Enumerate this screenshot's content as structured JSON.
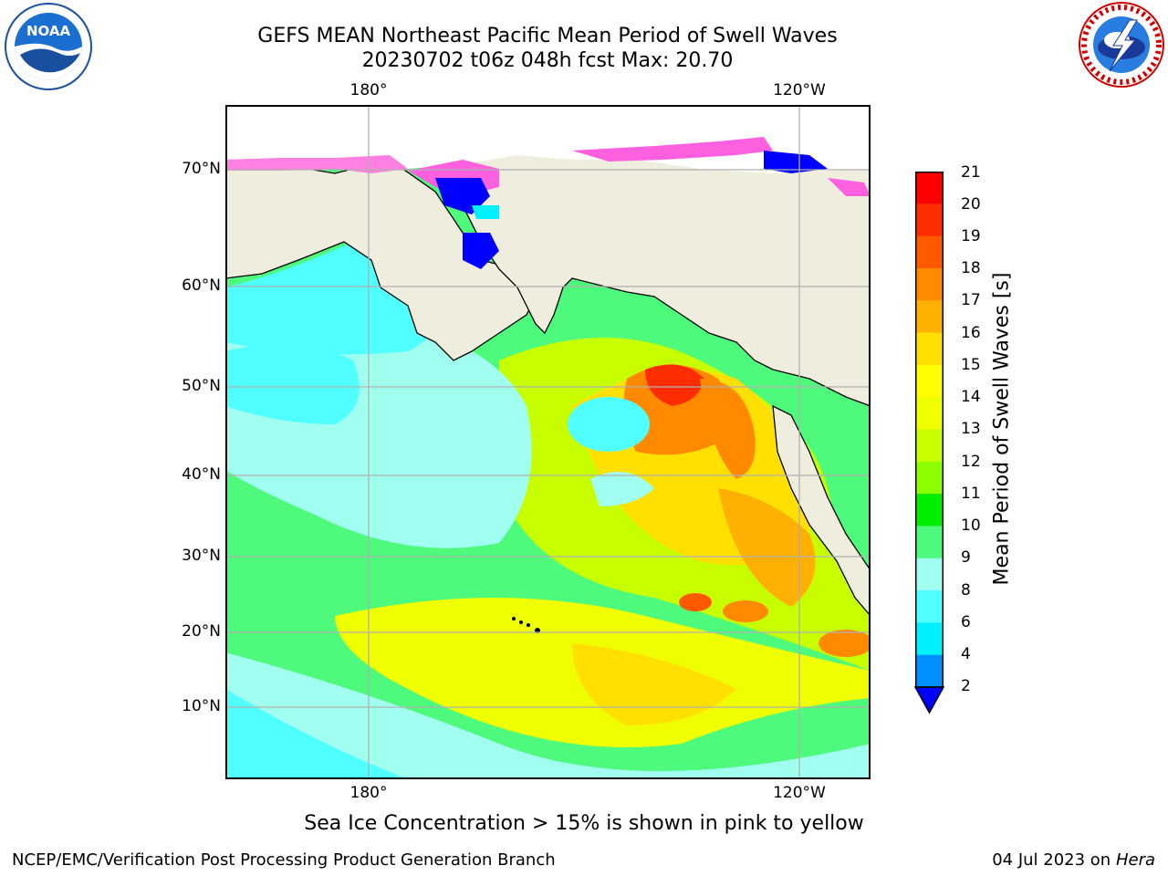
{
  "header": {
    "title_line1": "GEFS MEAN Northeast Pacific Mean Period of Swell Waves",
    "title_line2": "20230702 t06z 048h fcst   Max: 20.70"
  },
  "logos": {
    "left": "NOAA",
    "right": "NATIONAL WEATHER SERVICE"
  },
  "map": {
    "lon_labels_top": [
      "180°",
      "120°W"
    ],
    "lon_labels_bottom": [
      "180°",
      "120°W"
    ],
    "lat_labels": [
      "70°N",
      "60°N",
      "50°N",
      "40°N",
      "30°N",
      "20°N",
      "10°N"
    ],
    "colors": {
      "land": "#efedde",
      "grid": "#b0b0b0",
      "coast": "#000000"
    }
  },
  "colorbar": {
    "title": "Mean Period of Swell Waves [s]",
    "ticks": [
      "21",
      "20",
      "19",
      "18",
      "17",
      "16",
      "15",
      "14",
      "13",
      "12",
      "11",
      "10",
      "9",
      "8",
      "6",
      "4",
      "2"
    ],
    "colors_top_to_bottom": [
      "#ff0000",
      "#ff2e00",
      "#ff5a00",
      "#ff8a00",
      "#ffb000",
      "#ffe000",
      "#ffff00",
      "#f0ff00",
      "#c8ff00",
      "#8cff00",
      "#00ee00",
      "#4dfa7c",
      "#a0ffef",
      "#50ffff",
      "#00f0ff",
      "#0090ff",
      "#0000ff"
    ]
  },
  "note": "Sea Ice Concentration > 15% is shown in pink to yellow",
  "footer": {
    "left": "NCEP/EMC/Verification Post Processing Product Generation Branch",
    "right_date": "04 Jul 2023 on ",
    "right_host": "Hera"
  }
}
